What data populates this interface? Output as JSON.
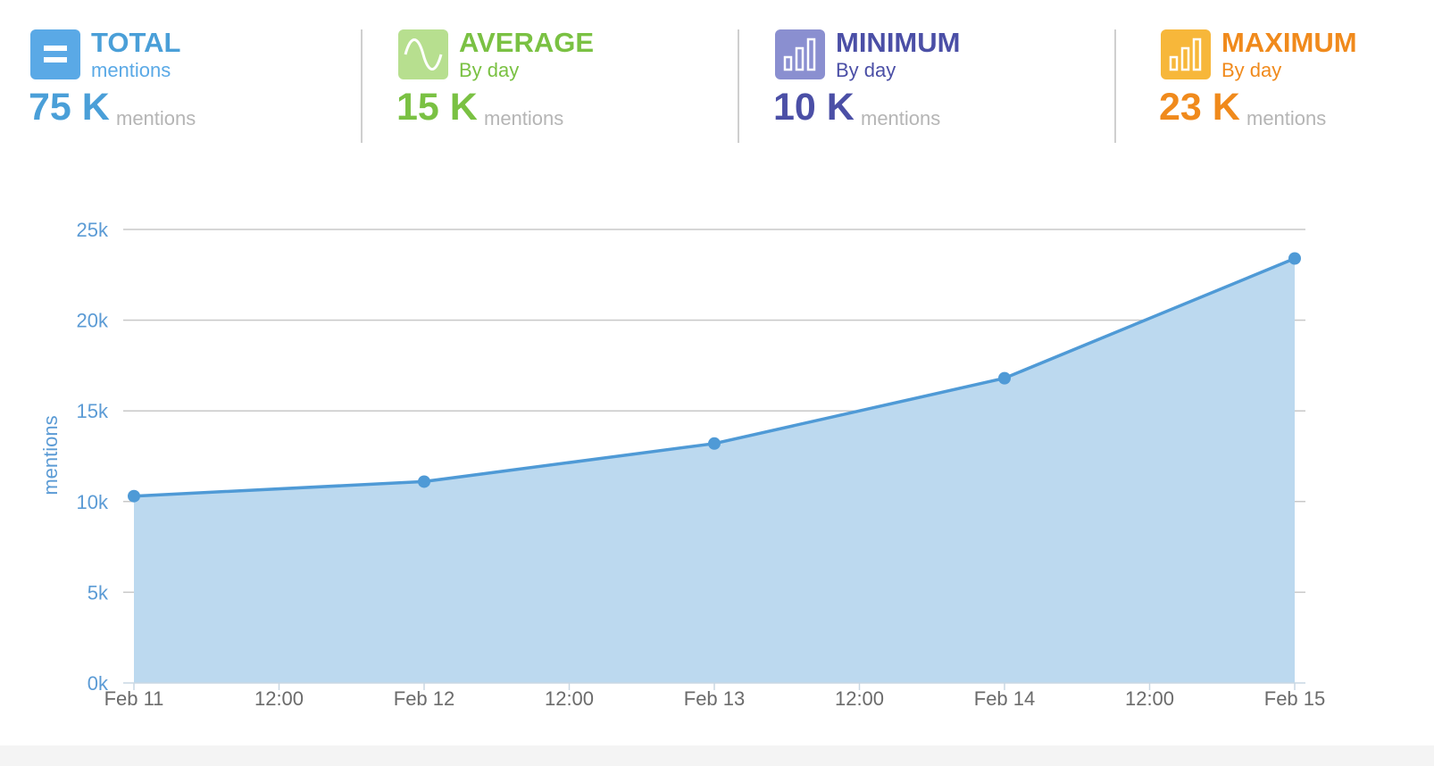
{
  "stats": [
    {
      "title": "TOTAL",
      "subtitle": "mentions",
      "value": "75 K",
      "unit": "mentions",
      "color": "#4a9fd8",
      "icon": "equals-icon"
    },
    {
      "title": "AVERAGE",
      "subtitle": "By day",
      "value": "15 K",
      "unit": "mentions",
      "color": "#7ac143",
      "icon": "sine-wave-icon"
    },
    {
      "title": "MINIMUM",
      "subtitle": "By day",
      "value": "10 K",
      "unit": "mentions",
      "color": "#4b4fa6",
      "icon": "bar-chart-icon"
    },
    {
      "title": "MAXIMUM",
      "subtitle": "By day",
      "value": "23 K",
      "unit": "mentions",
      "color": "#f08a1c",
      "icon": "bar-chart-icon"
    }
  ],
  "chart_data": {
    "type": "area",
    "ylabel": "mentions",
    "xlabel": "",
    "ylim": [
      0,
      25000
    ],
    "y_ticks": [
      "0k",
      "5k",
      "10k",
      "15k",
      "20k",
      "25k"
    ],
    "x_ticks": [
      "Feb 11",
      "12:00",
      "Feb 12",
      "12:00",
      "Feb 13",
      "12:00",
      "Feb 14",
      "12:00",
      "Feb 15"
    ],
    "grid": true,
    "series": [
      {
        "x": [
          "Feb 11",
          "Feb 12",
          "Feb 13",
          "Feb 14",
          "Feb 15"
        ],
        "values": [
          10300,
          11100,
          13200,
          16800,
          23400
        ]
      }
    ],
    "colors": {
      "line": "#4f9ad6",
      "fill": "#bcd9ef",
      "grid": "#c8c8c8"
    }
  }
}
